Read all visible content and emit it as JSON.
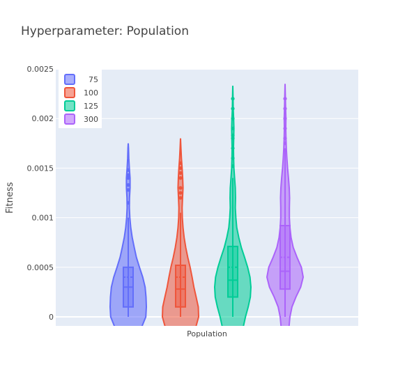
{
  "chart_data": {
    "type": "violin",
    "title": "Hyperparameter: Population",
    "xlabel": "Population",
    "ylabel": "Fitness",
    "ylim": [
      -0.0001,
      0.0025
    ],
    "yticks": [
      {
        "value": 0,
        "label": "0"
      },
      {
        "value": 0.0005,
        "label": "0.0005"
      },
      {
        "value": 0.001,
        "label": "0.001"
      },
      {
        "value": 0.0015,
        "label": "0.0015"
      },
      {
        "value": 0.002,
        "label": "0.002"
      },
      {
        "value": 0.0025,
        "label": "0.0025"
      }
    ],
    "grid": true,
    "legend_position": "top-left",
    "series": [
      {
        "name": "75",
        "color": "#636efa",
        "min": 0,
        "q1": 0.0001,
        "median": 0.0003,
        "mean": 0.0004,
        "q3": 0.0005,
        "upper_fence": 0.001,
        "max": 0.00175,
        "outliers": [
          0.00115,
          0.00128,
          0.00133,
          0.0014,
          0.00143,
          0.00148
        ],
        "density": [
          [
            -0.0001,
            0.75
          ],
          [
            0.0,
            0.97
          ],
          [
            0.0001,
            1.0
          ],
          [
            0.0002,
            0.98
          ],
          [
            0.0003,
            0.93
          ],
          [
            0.0004,
            0.8
          ],
          [
            0.0005,
            0.62
          ],
          [
            0.0006,
            0.45
          ],
          [
            0.0007,
            0.33
          ],
          [
            0.0008,
            0.22
          ],
          [
            0.0009,
            0.14
          ],
          [
            0.001,
            0.09
          ],
          [
            0.0011,
            0.06
          ],
          [
            0.0012,
            0.07
          ],
          [
            0.0013,
            0.1
          ],
          [
            0.0014,
            0.1
          ],
          [
            0.0015,
            0.06
          ],
          [
            0.0016,
            0.03
          ],
          [
            0.0017,
            0.015
          ],
          [
            0.00175,
            0.0
          ]
        ]
      },
      {
        "name": "100",
        "color": "#ef553b",
        "min": 0,
        "q1": 0.0001,
        "median": 0.00028,
        "mean": 0.0004,
        "q3": 0.00052,
        "upper_fence": 0.00105,
        "max": 0.0018,
        "outliers": [
          0.0012,
          0.00125,
          0.0013,
          0.0014,
          0.00145,
          0.0015,
          0.00155
        ],
        "density": [
          [
            -0.0001,
            0.85
          ],
          [
            0.0,
            1.0
          ],
          [
            0.0001,
            0.98
          ],
          [
            0.0002,
            0.86
          ],
          [
            0.0003,
            0.74
          ],
          [
            0.0004,
            0.64
          ],
          [
            0.0005,
            0.53
          ],
          [
            0.0006,
            0.4
          ],
          [
            0.0007,
            0.29
          ],
          [
            0.0008,
            0.2
          ],
          [
            0.0009,
            0.14
          ],
          [
            0.001,
            0.1
          ],
          [
            0.0011,
            0.09
          ],
          [
            0.0012,
            0.11
          ],
          [
            0.0013,
            0.14
          ],
          [
            0.0014,
            0.12
          ],
          [
            0.0015,
            0.09
          ],
          [
            0.0016,
            0.05
          ],
          [
            0.0017,
            0.025
          ],
          [
            0.0018,
            0.0
          ]
        ]
      },
      {
        "name": "125",
        "color": "#00cc96",
        "min": 0,
        "q1": 0.0002,
        "median": 0.00037,
        "mean": 0.0005,
        "q3": 0.00071,
        "upper_fence": 0.0014,
        "max": 0.00233,
        "outliers": [
          0.00152,
          0.0016,
          0.0017,
          0.0018,
          0.00183,
          0.0019,
          0.002,
          0.0021,
          0.0022
        ],
        "density": [
          [
            -0.0001,
            0.58
          ],
          [
            0.0,
            0.7
          ],
          [
            0.0001,
            0.85
          ],
          [
            0.0002,
            0.97
          ],
          [
            0.0003,
            1.0
          ],
          [
            0.0004,
            0.95
          ],
          [
            0.0005,
            0.82
          ],
          [
            0.0006,
            0.65
          ],
          [
            0.0007,
            0.47
          ],
          [
            0.0008,
            0.33
          ],
          [
            0.0009,
            0.22
          ],
          [
            0.001,
            0.17
          ],
          [
            0.0011,
            0.14
          ],
          [
            0.0012,
            0.15
          ],
          [
            0.0013,
            0.14
          ],
          [
            0.0014,
            0.1
          ],
          [
            0.0015,
            0.06
          ],
          [
            0.0016,
            0.045
          ],
          [
            0.0017,
            0.04
          ],
          [
            0.0018,
            0.05
          ],
          [
            0.0019,
            0.06
          ],
          [
            0.002,
            0.045
          ],
          [
            0.0021,
            0.025
          ],
          [
            0.0022,
            0.015
          ],
          [
            0.00233,
            0.0
          ]
        ]
      },
      {
        "name": "300",
        "color": "#ab63fa",
        "min": 0,
        "q1": 0.00028,
        "median": 0.00046,
        "mean": 0.0006,
        "q3": 0.00092,
        "upper_fence": 0.0017,
        "max": 0.00235,
        "outliers": [
          0.00175,
          0.0018,
          0.0019,
          0.002,
          0.0021,
          0.0022
        ],
        "density": [
          [
            -0.0001,
            0.22
          ],
          [
            0.0,
            0.27
          ],
          [
            0.0001,
            0.38
          ],
          [
            0.0002,
            0.6
          ],
          [
            0.0003,
            0.86
          ],
          [
            0.0004,
            1.0
          ],
          [
            0.0005,
            0.9
          ],
          [
            0.0006,
            0.66
          ],
          [
            0.0007,
            0.45
          ],
          [
            0.0008,
            0.33
          ],
          [
            0.0009,
            0.27
          ],
          [
            0.001,
            0.24
          ],
          [
            0.0011,
            0.24
          ],
          [
            0.0012,
            0.25
          ],
          [
            0.0013,
            0.23
          ],
          [
            0.0014,
            0.19
          ],
          [
            0.0015,
            0.14
          ],
          [
            0.0016,
            0.1
          ],
          [
            0.0017,
            0.07
          ],
          [
            0.0018,
            0.05
          ],
          [
            0.0019,
            0.04
          ],
          [
            0.002,
            0.045
          ],
          [
            0.0021,
            0.03
          ],
          [
            0.0022,
            0.02
          ],
          [
            0.00235,
            0.0
          ]
        ]
      }
    ]
  }
}
